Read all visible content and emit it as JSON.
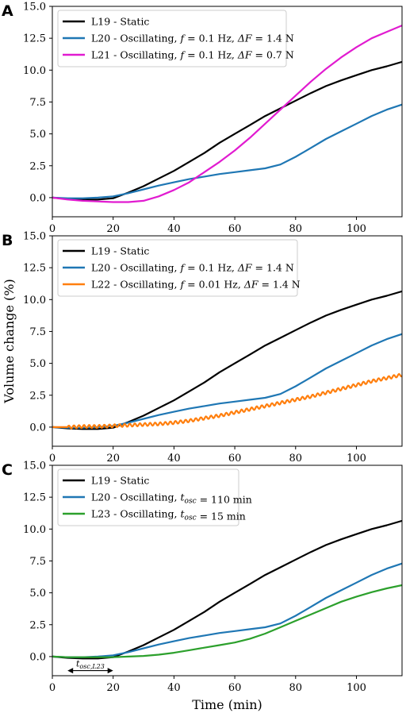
{
  "chart_data": [
    {
      "type": "line",
      "panel": "A",
      "xlim": [
        0,
        115
      ],
      "ylim": [
        -1.5,
        15.0
      ],
      "xticks": [
        0,
        20,
        40,
        60,
        80,
        100
      ],
      "yticks": [
        "0.0",
        "2.5",
        "5.0",
        "7.5",
        "10.0",
        "12.5",
        "15.0"
      ],
      "legend_position": "top-left",
      "series": [
        {
          "name": "L19 - Static",
          "color": "#000000",
          "x": [
            0,
            5,
            10,
            15,
            20,
            25,
            30,
            35,
            40,
            45,
            50,
            55,
            60,
            65,
            70,
            75,
            80,
            85,
            90,
            95,
            100,
            105,
            110,
            115
          ],
          "y": [
            0.0,
            -0.1,
            -0.15,
            -0.15,
            -0.05,
            0.4,
            0.9,
            1.5,
            2.1,
            2.8,
            3.5,
            4.3,
            5.0,
            5.7,
            6.4,
            7.0,
            7.6,
            8.2,
            8.75,
            9.2,
            9.6,
            10.0,
            10.3,
            10.65
          ]
        },
        {
          "name": "L20 - Oscillating, f = 0.1 Hz, ΔF = 1.4 N",
          "color": "#1f77b4",
          "x": [
            0,
            5,
            10,
            15,
            20,
            25,
            30,
            35,
            40,
            45,
            50,
            55,
            60,
            65,
            70,
            75,
            80,
            85,
            90,
            95,
            100,
            105,
            110,
            115
          ],
          "y": [
            0.0,
            -0.05,
            -0.05,
            0.0,
            0.1,
            0.35,
            0.65,
            0.95,
            1.2,
            1.45,
            1.65,
            1.85,
            2.0,
            2.15,
            2.3,
            2.6,
            3.2,
            3.9,
            4.6,
            5.2,
            5.8,
            6.4,
            6.9,
            7.3
          ]
        },
        {
          "name": "L21 - Oscillating, f = 0.1 Hz, ΔF = 0.7 N",
          "color": "#e11bd0",
          "x": [
            0,
            5,
            10,
            15,
            20,
            25,
            30,
            35,
            40,
            45,
            50,
            55,
            60,
            65,
            70,
            75,
            80,
            85,
            90,
            95,
            100,
            105,
            110,
            115
          ],
          "y": [
            0.0,
            -0.15,
            -0.25,
            -0.3,
            -0.35,
            -0.35,
            -0.25,
            0.1,
            0.6,
            1.2,
            2.0,
            2.8,
            3.7,
            4.7,
            5.8,
            6.9,
            8.0,
            9.1,
            10.1,
            11.0,
            11.8,
            12.5,
            13.0,
            13.5
          ]
        }
      ]
    },
    {
      "type": "line",
      "panel": "B",
      "ylabel": "Volume change (%)",
      "xlim": [
        0,
        115
      ],
      "ylim": [
        -1.5,
        15.0
      ],
      "xticks": [
        0,
        20,
        40,
        60,
        80,
        100
      ],
      "yticks": [
        "0.0",
        "2.5",
        "5.0",
        "7.5",
        "10.0",
        "12.5",
        "15.0"
      ],
      "legend_position": "top-left",
      "series": [
        {
          "name": "L19 - Static",
          "color": "#000000",
          "x": [
            0,
            5,
            10,
            15,
            20,
            25,
            30,
            35,
            40,
            45,
            50,
            55,
            60,
            65,
            70,
            75,
            80,
            85,
            90,
            95,
            100,
            105,
            110,
            115
          ],
          "y": [
            0.0,
            -0.1,
            -0.15,
            -0.15,
            -0.05,
            0.4,
            0.9,
            1.5,
            2.1,
            2.8,
            3.5,
            4.3,
            5.0,
            5.7,
            6.4,
            7.0,
            7.6,
            8.2,
            8.75,
            9.2,
            9.6,
            10.0,
            10.3,
            10.65
          ]
        },
        {
          "name": "L20 - Oscillating, f = 0.1 Hz, ΔF = 1.4 N",
          "color": "#1f77b4",
          "x": [
            0,
            5,
            10,
            15,
            20,
            25,
            30,
            35,
            40,
            45,
            50,
            55,
            60,
            65,
            70,
            75,
            80,
            85,
            90,
            95,
            100,
            105,
            110,
            115
          ],
          "y": [
            0.0,
            -0.05,
            -0.05,
            0.0,
            0.1,
            0.35,
            0.65,
            0.95,
            1.2,
            1.45,
            1.65,
            1.85,
            2.0,
            2.15,
            2.3,
            2.6,
            3.2,
            3.9,
            4.6,
            5.2,
            5.8,
            6.4,
            6.9,
            7.3
          ]
        },
        {
          "name": "L22 - Oscillating, f = 0.01 Hz, ΔF = 1.4 N",
          "color": "#ff7f0e",
          "oscillation_amplitude": 0.12,
          "x": [
            0,
            5,
            10,
            15,
            20,
            25,
            30,
            35,
            40,
            45,
            50,
            55,
            60,
            65,
            70,
            75,
            80,
            85,
            90,
            95,
            100,
            105,
            110,
            115
          ],
          "y": [
            0.0,
            0.0,
            0.05,
            0.05,
            0.1,
            0.15,
            0.2,
            0.25,
            0.35,
            0.5,
            0.7,
            0.9,
            1.15,
            1.4,
            1.65,
            1.9,
            2.15,
            2.4,
            2.7,
            3.0,
            3.3,
            3.6,
            3.85,
            4.1
          ]
        }
      ]
    },
    {
      "type": "line",
      "panel": "C",
      "xlabel": "Time (min)",
      "xlim": [
        0,
        115
      ],
      "ylim": [
        -1.5,
        15.0
      ],
      "xticks": [
        0,
        20,
        40,
        60,
        80,
        100
      ],
      "yticks": [
        "0.0",
        "2.5",
        "5.0",
        "7.5",
        "10.0",
        "12.5",
        "15.0"
      ],
      "legend_position": "top-left",
      "annotation": {
        "text": "tosc,L23",
        "x_start": 5,
        "x_end": 20,
        "y": -1.1
      },
      "series": [
        {
          "name": "L19 - Static",
          "color": "#000000",
          "x": [
            0,
            5,
            10,
            15,
            20,
            25,
            30,
            35,
            40,
            45,
            50,
            55,
            60,
            65,
            70,
            75,
            80,
            85,
            90,
            95,
            100,
            105,
            110,
            115
          ],
          "y": [
            0.0,
            -0.1,
            -0.15,
            -0.15,
            -0.05,
            0.4,
            0.9,
            1.5,
            2.1,
            2.8,
            3.5,
            4.3,
            5.0,
            5.7,
            6.4,
            7.0,
            7.6,
            8.2,
            8.75,
            9.2,
            9.6,
            10.0,
            10.3,
            10.65
          ]
        },
        {
          "name": "L20 - Oscillating, tosc = 110 min",
          "color": "#1f77b4",
          "x": [
            0,
            5,
            10,
            15,
            20,
            25,
            30,
            35,
            40,
            45,
            50,
            55,
            60,
            65,
            70,
            75,
            80,
            85,
            90,
            95,
            100,
            105,
            110,
            115
          ],
          "y": [
            0.0,
            -0.05,
            -0.05,
            0.0,
            0.1,
            0.35,
            0.65,
            0.95,
            1.2,
            1.45,
            1.65,
            1.85,
            2.0,
            2.15,
            2.3,
            2.6,
            3.2,
            3.9,
            4.6,
            5.2,
            5.8,
            6.4,
            6.9,
            7.3
          ]
        },
        {
          "name": "L23 - Oscillating, tosc = 15 min",
          "color": "#2ca02c",
          "x": [
            0,
            5,
            10,
            15,
            20,
            25,
            30,
            35,
            40,
            45,
            50,
            55,
            60,
            65,
            70,
            75,
            80,
            85,
            90,
            95,
            100,
            105,
            110,
            115
          ],
          "y": [
            0.0,
            -0.05,
            -0.05,
            -0.05,
            -0.05,
            0.0,
            0.05,
            0.15,
            0.3,
            0.5,
            0.7,
            0.9,
            1.1,
            1.4,
            1.8,
            2.3,
            2.8,
            3.3,
            3.8,
            4.3,
            4.7,
            5.05,
            5.35,
            5.6
          ]
        }
      ]
    }
  ]
}
